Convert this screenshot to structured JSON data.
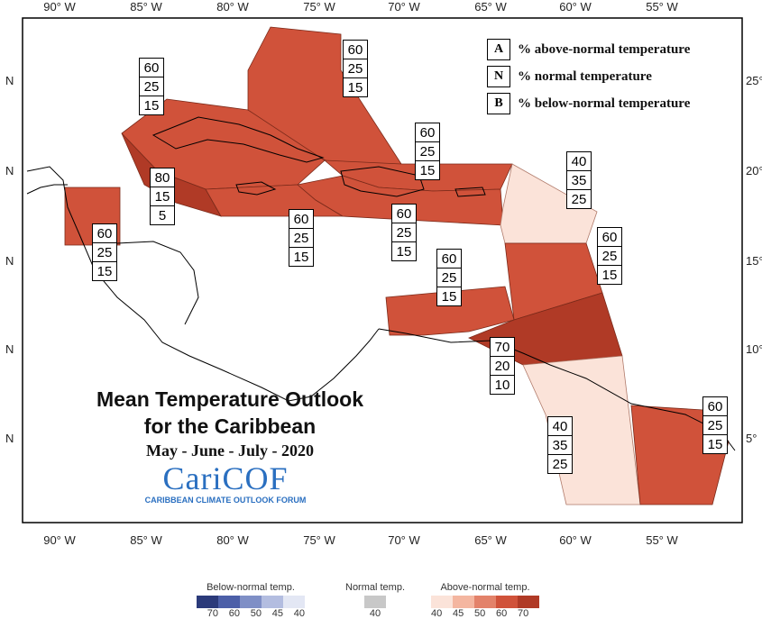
{
  "map": {
    "title_line1": "Mean Temperature Outlook",
    "title_line2": "for the Caribbean",
    "period": "May - June - July - 2020",
    "logo_text": "CariCOF",
    "logo_subtitle": "CARIBBEAN CLIMATE OUTLOOK FORUM",
    "lon_labels": [
      "90° W",
      "85° W",
      "80° W",
      "75° W",
      "70° W",
      "65° W",
      "60° W",
      "55° W"
    ],
    "lat_labels_left": [
      "N",
      "N",
      "N",
      "N",
      "N"
    ],
    "lat_labels_right": [
      "25°",
      "20°",
      "15°",
      "10°",
      "5°"
    ]
  },
  "legend": {
    "items": [
      {
        "key": "A",
        "text": "% above-normal temperature"
      },
      {
        "key": "N",
        "text": "% normal temperature"
      },
      {
        "key": "B",
        "text": "% below-normal temperature"
      }
    ]
  },
  "regions": [
    {
      "id": "bahamas",
      "above": "60",
      "normal": "25",
      "below": "15",
      "color": "#d0523a"
    },
    {
      "id": "cuba",
      "above": "60",
      "normal": "25",
      "below": "15",
      "color": "#d0523a"
    },
    {
      "id": "hispaniola-north",
      "above": "60",
      "normal": "25",
      "below": "15",
      "color": "#d0523a"
    },
    {
      "id": "jamaica-cayman",
      "above": "80",
      "normal": "15",
      "below": "5",
      "color": "#b03a26"
    },
    {
      "id": "belize",
      "above": "60",
      "normal": "25",
      "below": "15",
      "color": "#d0523a"
    },
    {
      "id": "central-west",
      "above": "60",
      "normal": "25",
      "below": "15",
      "color": "#d0523a"
    },
    {
      "id": "puerto-rico",
      "above": "60",
      "normal": "25",
      "below": "15",
      "color": "#d0523a"
    },
    {
      "id": "leeward-islands",
      "above": "40",
      "normal": "35",
      "below": "25",
      "color": "#fbe3d9"
    },
    {
      "id": "windward-islands",
      "above": "60",
      "normal": "25",
      "below": "15",
      "color": "#d0523a"
    },
    {
      "id": "abc-islands",
      "above": "60",
      "normal": "25",
      "below": "15",
      "color": "#d0523a"
    },
    {
      "id": "trinidad-tobago",
      "above": "70",
      "normal": "20",
      "below": "10",
      "color": "#b03a26"
    },
    {
      "id": "guyana",
      "above": "40",
      "normal": "35",
      "below": "25",
      "color": "#fbe3d9"
    },
    {
      "id": "suriname-guiana",
      "above": "60",
      "normal": "25",
      "below": "15",
      "color": "#d0523a"
    }
  ],
  "colorbar": {
    "below_title": "Below-normal temp.",
    "normal_title": "Normal temp.",
    "above_title": "Above-normal temp.",
    "below_ticks": [
      "70",
      "60",
      "50",
      "45",
      "40"
    ],
    "normal_ticks": [
      "40"
    ],
    "above_ticks": [
      "40",
      "45",
      "50",
      "60",
      "70"
    ],
    "below_colors": [
      "#2b3a7a",
      "#4c5fa8",
      "#7f8fc6",
      "#b3bde0",
      "#e3e7f4"
    ],
    "normal_color": "#c8c8c8",
    "above_colors": [
      "#fbe3d9",
      "#f4b6a0",
      "#e3826a",
      "#d0523a",
      "#b03a26"
    ]
  }
}
